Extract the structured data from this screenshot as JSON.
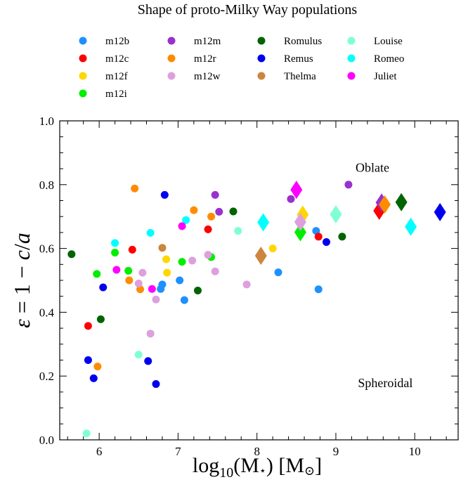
{
  "chart_data": {
    "type": "scatter",
    "title": "Shape of proto-Milky Way populations",
    "xlabel": "log10(M⋆) [M⊙]",
    "ylabel": "ε = 1 − c/a",
    "xlim": [
      5.5,
      10.55
    ],
    "ylim": [
      0.0,
      1.0
    ],
    "xticks": [
      "6",
      "7",
      "8",
      "9",
      "10"
    ],
    "yticks": [
      "0.0",
      "0.2",
      "0.4",
      "0.6",
      "0.8",
      "1.0"
    ],
    "grid": false,
    "legend_position": "top",
    "annotations": [
      {
        "text": "Oblate",
        "x": 9.25,
        "y": 0.84
      },
      {
        "text": "Spheroidal",
        "x": 9.28,
        "y": 0.165
      }
    ],
    "series": [
      {
        "name": "m12b",
        "color": "#1e90ff",
        "marker": "circle",
        "points": [
          [
            6.78,
            0.473
          ],
          [
            6.8,
            0.487
          ],
          [
            7.02,
            0.5
          ],
          [
            7.08,
            0.438
          ],
          [
            8.27,
            0.525
          ],
          [
            8.78,
            0.472
          ],
          [
            8.75,
            0.655
          ]
        ]
      },
      {
        "name": "m12c",
        "color": "#ff0000",
        "marker": "circle",
        "points": [
          [
            5.86,
            0.357
          ],
          [
            6.42,
            0.596
          ],
          [
            7.38,
            0.66
          ],
          [
            8.78,
            0.637
          ]
        ],
        "diamonds": [
          [
            9.55,
            0.718
          ]
        ]
      },
      {
        "name": "m12f",
        "color": "#ffd700",
        "marker": "circle",
        "points": [
          [
            6.85,
            0.566
          ],
          [
            6.86,
            0.524
          ],
          [
            8.2,
            0.6
          ]
        ],
        "diamonds": [
          [
            8.58,
            0.706
          ]
        ]
      },
      {
        "name": "m12i",
        "color": "#00ee00",
        "marker": "circle",
        "points": [
          [
            5.97,
            0.52
          ],
          [
            6.2,
            0.587
          ],
          [
            6.37,
            0.53
          ],
          [
            7.05,
            0.558
          ],
          [
            7.42,
            0.573
          ]
        ],
        "diamonds": [
          [
            8.55,
            0.651
          ]
        ]
      },
      {
        "name": "m12m",
        "color": "#9932cc",
        "marker": "circle",
        "points": [
          [
            7.47,
            0.768
          ],
          [
            7.52,
            0.715
          ],
          [
            8.43,
            0.755
          ],
          [
            9.16,
            0.8
          ]
        ],
        "diamonds": [
          [
            9.58,
            0.744
          ]
        ]
      },
      {
        "name": "m12r",
        "color": "#ff8c00",
        "marker": "circle",
        "points": [
          [
            5.98,
            0.23
          ],
          [
            6.38,
            0.5
          ],
          [
            6.45,
            0.788
          ],
          [
            6.52,
            0.472
          ],
          [
            7.2,
            0.72
          ],
          [
            7.42,
            0.7
          ]
        ],
        "diamonds": [
          [
            9.62,
            0.738
          ]
        ]
      },
      {
        "name": "m12w",
        "color": "#dda0dd",
        "marker": "circle",
        "points": [
          [
            6.5,
            0.49
          ],
          [
            6.55,
            0.524
          ],
          [
            6.65,
            0.333
          ],
          [
            6.72,
            0.44
          ],
          [
            7.18,
            0.562
          ],
          [
            7.38,
            0.58
          ],
          [
            7.47,
            0.528
          ],
          [
            7.87,
            0.487
          ]
        ],
        "diamonds": [
          [
            8.55,
            0.683
          ]
        ]
      },
      {
        "name": "Romulus",
        "color": "#006400",
        "marker": "circle",
        "points": [
          [
            5.65,
            0.582
          ],
          [
            6.02,
            0.378
          ],
          [
            7.25,
            0.468
          ],
          [
            7.7,
            0.716
          ],
          [
            9.08,
            0.637
          ]
        ],
        "diamonds": [
          [
            9.83,
            0.745
          ]
        ]
      },
      {
        "name": "Remus",
        "color": "#0000ee",
        "marker": "circle",
        "points": [
          [
            5.86,
            0.25
          ],
          [
            5.93,
            0.193
          ],
          [
            6.05,
            0.478
          ],
          [
            6.62,
            0.247
          ],
          [
            6.72,
            0.175
          ],
          [
            6.83,
            0.768
          ],
          [
            8.88,
            0.62
          ]
        ],
        "diamonds": [
          [
            10.32,
            0.714
          ]
        ]
      },
      {
        "name": "Thelma",
        "color": "#cd853f",
        "marker": "circle",
        "points": [
          [
            6.8,
            0.602
          ]
        ],
        "diamonds": [
          [
            8.05,
            0.577
          ]
        ]
      },
      {
        "name": "Louise",
        "color": "#7fffd4",
        "marker": "circle",
        "points": [
          [
            5.84,
            0.02
          ],
          [
            6.5,
            0.267
          ],
          [
            7.76,
            0.655
          ]
        ],
        "diamonds": [
          [
            9.0,
            0.707
          ]
        ]
      },
      {
        "name": "Romeo",
        "color": "#00ffff",
        "marker": "circle",
        "points": [
          [
            6.2,
            0.617
          ],
          [
            6.65,
            0.649
          ],
          [
            7.1,
            0.689
          ]
        ],
        "diamonds": [
          [
            8.08,
            0.682
          ],
          [
            9.95,
            0.668
          ]
        ]
      },
      {
        "name": "Juliet",
        "color": "#ff00ff",
        "marker": "circle",
        "points": [
          [
            6.22,
            0.533
          ],
          [
            6.67,
            0.473
          ],
          [
            7.05,
            0.67
          ]
        ],
        "diamonds": [
          [
            8.5,
            0.784
          ]
        ]
      }
    ]
  }
}
